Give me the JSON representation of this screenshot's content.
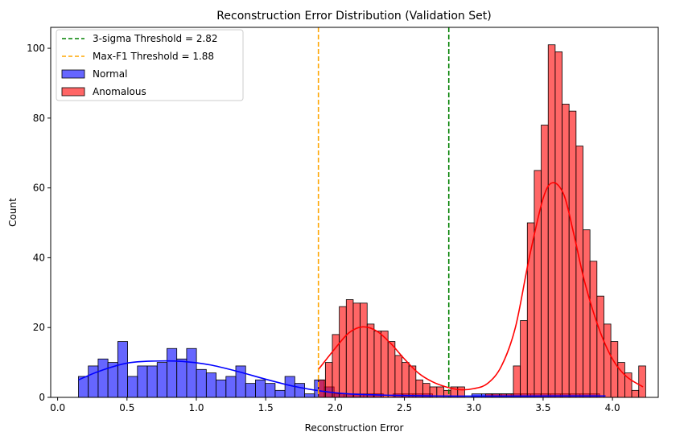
{
  "chart_data": {
    "type": "histogram",
    "title": "Reconstruction Error Distribution (Validation Set)",
    "xlabel": "Reconstruction Error",
    "ylabel": "Count",
    "xlim": [
      -0.05,
      4.33
    ],
    "ylim": [
      0,
      106
    ],
    "xticks": [
      0.0,
      0.5,
      1.0,
      1.5,
      2.0,
      2.5,
      3.0,
      3.5,
      4.0
    ],
    "yticks": [
      0,
      20,
      40,
      60,
      80,
      100
    ],
    "grid": false,
    "legend_position": "top-left",
    "thresholds": [
      {
        "label": "3-sigma Threshold = 2.82",
        "x": 2.82,
        "color": "#008000"
      },
      {
        "label": "Max-F1 Threshold = 1.88",
        "x": 1.88,
        "color": "#ffa500"
      }
    ],
    "series": [
      {
        "name": "Normal",
        "color": "#0000ff",
        "bin_width": 0.0709,
        "bins_start": [
          0.15,
          0.2209,
          0.2918,
          0.3627,
          0.4336,
          0.5045,
          0.5754,
          0.6463,
          0.7172,
          0.7881,
          0.859,
          0.9299,
          1.0008,
          1.0717,
          1.1426,
          1.2135,
          1.2844,
          1.3553,
          1.4262,
          1.4971,
          1.568,
          1.6389,
          1.7098,
          1.7807,
          1.8516,
          1.9225,
          1.9934,
          2.0643,
          2.1352,
          2.2061,
          2.277,
          2.3479,
          2.4188,
          2.4897,
          2.5606,
          2.6315,
          2.7024,
          2.7733,
          2.8442,
          2.9151,
          2.986,
          3.0569,
          3.1278,
          3.1987,
          3.2696,
          3.3405,
          3.4114,
          3.4823,
          3.5532,
          3.6241,
          3.695,
          3.7659,
          3.8368
        ],
        "counts": [
          6,
          9,
          11,
          10,
          16,
          6,
          9,
          9,
          10,
          14,
          11,
          14,
          8,
          7,
          5,
          6,
          9,
          4,
          5,
          4,
          2,
          6,
          4,
          1,
          5,
          3,
          1,
          1,
          1,
          1,
          1,
          0,
          1,
          1,
          1,
          1,
          0,
          0,
          0,
          0,
          1,
          1,
          1,
          1,
          1,
          1,
          1,
          1,
          1,
          1,
          1,
          1,
          1
        ],
        "kde": [
          [
            0.15,
            5.0
          ],
          [
            0.3,
            7.5
          ],
          [
            0.5,
            9.8
          ],
          [
            0.7,
            10.4
          ],
          [
            0.9,
            10.3
          ],
          [
            1.1,
            9.3
          ],
          [
            1.3,
            7.4
          ],
          [
            1.5,
            5.2
          ],
          [
            1.7,
            3.2
          ],
          [
            1.9,
            1.8
          ],
          [
            2.1,
            1.0
          ],
          [
            2.4,
            0.6
          ],
          [
            2.7,
            0.4
          ],
          [
            3.0,
            0.35
          ],
          [
            3.3,
            0.35
          ],
          [
            3.6,
            0.4
          ],
          [
            3.95,
            0.4
          ]
        ]
      },
      {
        "name": "Anomalous",
        "color": "#ff0000",
        "bin_width": 0.0502,
        "bins_start": [
          1.88,
          1.9302,
          1.9804,
          2.0306,
          2.0808,
          2.131,
          2.1812,
          2.2314,
          2.2816,
          2.3318,
          2.382,
          2.4322,
          2.4824,
          2.5326,
          2.5828,
          2.633,
          2.6832,
          2.7334,
          2.7836,
          2.8338,
          2.884,
          2.9342,
          2.9844,
          3.0346,
          3.0848,
          3.135,
          3.1852,
          3.2354,
          3.2856,
          3.3358,
          3.386,
          3.4362,
          3.4864,
          3.5366,
          3.5868,
          3.637,
          3.6872,
          3.7374,
          3.7876,
          3.8378,
          3.888,
          3.9382,
          3.9884,
          4.0386,
          4.0888,
          4.139,
          4.1892
        ],
        "counts": [
          5,
          10,
          18,
          26,
          28,
          27,
          27,
          21,
          19,
          19,
          16,
          12,
          10,
          9,
          5,
          4,
          3,
          3,
          2,
          3,
          3,
          0,
          0,
          0,
          1,
          1,
          1,
          1,
          9,
          22,
          50,
          65,
          78,
          101,
          99,
          84,
          82,
          72,
          48,
          39,
          29,
          21,
          16,
          10,
          7,
          2,
          9
        ],
        "kde": [
          [
            1.88,
            8.0
          ],
          [
            2.0,
            14.0
          ],
          [
            2.1,
            18.5
          ],
          [
            2.2,
            20.2
          ],
          [
            2.3,
            19.0
          ],
          [
            2.4,
            15.5
          ],
          [
            2.5,
            11.0
          ],
          [
            2.6,
            7.0
          ],
          [
            2.7,
            4.5
          ],
          [
            2.8,
            3.0
          ],
          [
            2.9,
            2.2
          ],
          [
            3.0,
            2.5
          ],
          [
            3.1,
            4.0
          ],
          [
            3.2,
            9.0
          ],
          [
            3.3,
            20.0
          ],
          [
            3.4,
            40.0
          ],
          [
            3.5,
            57.0
          ],
          [
            3.57,
            61.5
          ],
          [
            3.65,
            58.0
          ],
          [
            3.72,
            47.0
          ],
          [
            3.8,
            33.0
          ],
          [
            3.9,
            20.0
          ],
          [
            4.0,
            11.0
          ],
          [
            4.1,
            6.0
          ],
          [
            4.22,
            3.0
          ]
        ]
      }
    ]
  }
}
